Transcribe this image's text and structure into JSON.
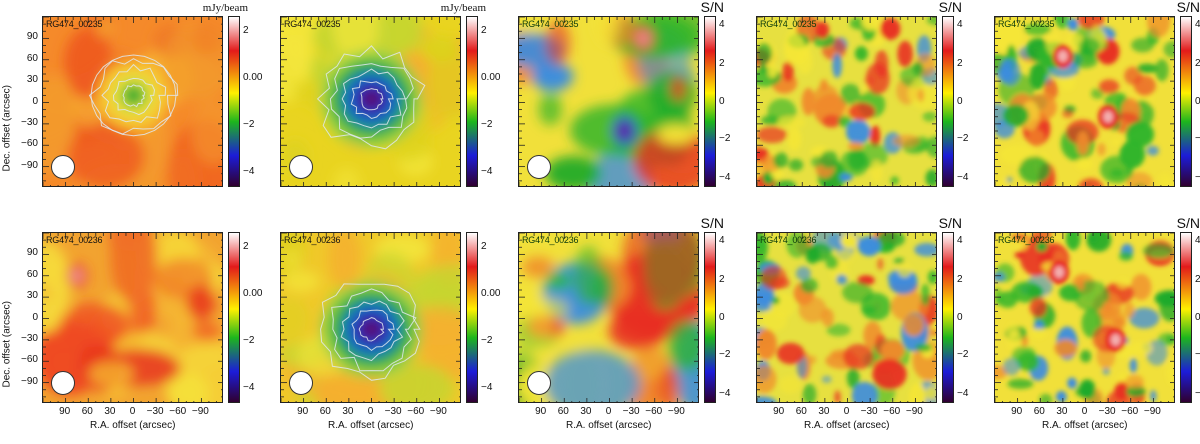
{
  "figure": {
    "columns": [
      {
        "colorbar_unit": "mJy/beam",
        "colorbar_ticks": [
          "2",
          "0.00",
          "−2",
          "−4"
        ]
      },
      {
        "colorbar_unit": "mJy/beam",
        "colorbar_ticks": [
          "2",
          "0.00",
          "−2",
          "−4"
        ]
      },
      {
        "colorbar_unit": "S/N",
        "colorbar_ticks": [
          "4",
          "2",
          "0",
          "−2",
          "−4"
        ]
      },
      {
        "colorbar_unit": "S/N",
        "colorbar_ticks": [
          "4",
          "2",
          "0",
          "−2",
          "−4"
        ]
      },
      {
        "colorbar_unit": "S/N",
        "colorbar_ticks": [
          "4",
          "2",
          "0",
          "−2",
          "−4"
        ]
      }
    ],
    "rows": [
      {
        "source_label": "RG474_00235"
      },
      {
        "source_label": "RG474_00236"
      }
    ],
    "y_axis_title": "Dec. offset (arcsec)",
    "x_axis_title": "R.A. offset (arcsec)",
    "y_ticks": [
      "90",
      "60",
      "30",
      "0",
      "−30",
      "−60",
      "−90"
    ],
    "x_ticks": [
      "90",
      "60",
      "30",
      "0",
      "−30",
      "−60",
      "−90"
    ],
    "colormap": [
      "#ffffff",
      "#e21a1a",
      "#fff000",
      "#1db51d",
      "#1c1cd8",
      "#300030"
    ]
  },
  "chart_data": {
    "type": "heatmap",
    "x_axis": {
      "label": "R.A. offset (arcsec)",
      "ticks": [
        90,
        60,
        30,
        0,
        -30,
        -60,
        -90
      ]
    },
    "y_axis": {
      "label": "Dec. offset (arcsec)",
      "ticks": [
        90,
        60,
        30,
        0,
        -30,
        -60,
        -90
      ]
    },
    "panels": [
      {
        "source": "RG474_00235",
        "colorbar": "mJy/beam",
        "range": [
          -5,
          2.5
        ],
        "features": [
          {
            "type": "depression",
            "x": 0,
            "y": 10,
            "peak": -2.5
          }
        ]
      },
      {
        "source": "RG474_00235",
        "colorbar": "mJy/beam",
        "range": [
          -5,
          2.5
        ],
        "features": [
          {
            "type": "depression",
            "x": 0,
            "y": 5,
            "peak": -5
          }
        ]
      },
      {
        "source": "RG474_00235",
        "colorbar": "S/N",
        "range": [
          -4,
          4
        ],
        "features": [
          {
            "type": "negative",
            "x": -20,
            "y": -40,
            "peak": -3
          },
          {
            "type": "positive",
            "x": -45,
            "y": 90,
            "peak": 3
          }
        ]
      },
      {
        "source": "RG474_00235",
        "colorbar": "S/N",
        "range": [
          -4,
          4
        ],
        "features": []
      },
      {
        "source": "RG474_00235",
        "colorbar": "S/N",
        "range": [
          -4,
          4
        ],
        "features": [
          {
            "type": "positive",
            "x": 30,
            "y": 65,
            "peak": 3
          },
          {
            "type": "positive",
            "x": -30,
            "y": -20,
            "peak": 3
          }
        ]
      },
      {
        "source": "RG474_00236",
        "colorbar": "mJy/beam",
        "range": [
          -5,
          2.5
        ],
        "features": [
          {
            "type": "positive",
            "x": 75,
            "y": 60,
            "peak": 2
          }
        ]
      },
      {
        "source": "RG474_00236",
        "colorbar": "mJy/beam",
        "range": [
          -5,
          2.5
        ],
        "features": [
          {
            "type": "depression",
            "x": 0,
            "y": -15,
            "peak": -5
          }
        ]
      },
      {
        "source": "RG474_00236",
        "colorbar": "S/N",
        "range": [
          -4,
          4
        ],
        "features": []
      },
      {
        "source": "RG474_00236",
        "colorbar": "S/N",
        "range": [
          -4,
          4
        ],
        "features": []
      },
      {
        "source": "RG474_00236",
        "colorbar": "S/N",
        "range": [
          -4,
          4
        ],
        "features": [
          {
            "type": "positive",
            "x": 35,
            "y": 65,
            "peak": 3
          },
          {
            "type": "positive",
            "x": -40,
            "y": -30,
            "peak": 3
          }
        ]
      }
    ]
  }
}
